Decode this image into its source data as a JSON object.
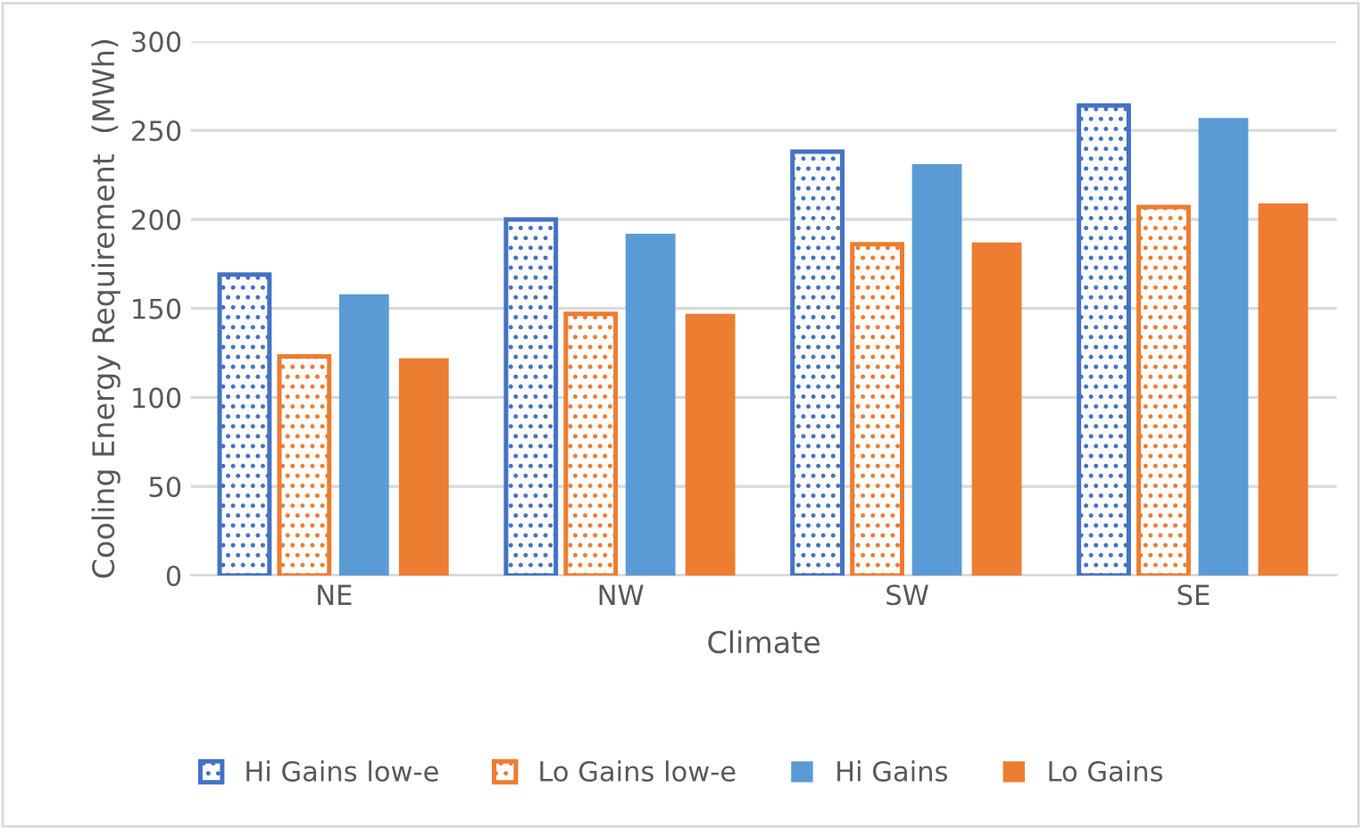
{
  "chart_data": {
    "type": "bar",
    "xlabel": "Climate",
    "ylabel": "Cooling Energy Requirement  (MWh)",
    "categories": [
      "NE",
      "NW",
      "SW",
      "SE"
    ],
    "series": [
      {
        "name": "Hi Gains low-e",
        "color": "#4472c4",
        "values": [
          169,
          200,
          238,
          264
        ]
      },
      {
        "name": "Lo Gains low-e",
        "color": "#ed7d31",
        "values": [
          123,
          147,
          186,
          207
        ]
      },
      {
        "name": "Hi Gains",
        "color": "#5b9bd5",
        "values": [
          158,
          192,
          231,
          257
        ]
      },
      {
        "name": "Lo Gains",
        "color": "#ed7d31",
        "values": [
          122,
          147,
          187,
          209
        ]
      }
    ],
    "ylim": [
      0,
      300
    ],
    "yticks": [
      0,
      50,
      100,
      150,
      200,
      250,
      300
    ],
    "grid": "y",
    "legend": "bottom"
  }
}
